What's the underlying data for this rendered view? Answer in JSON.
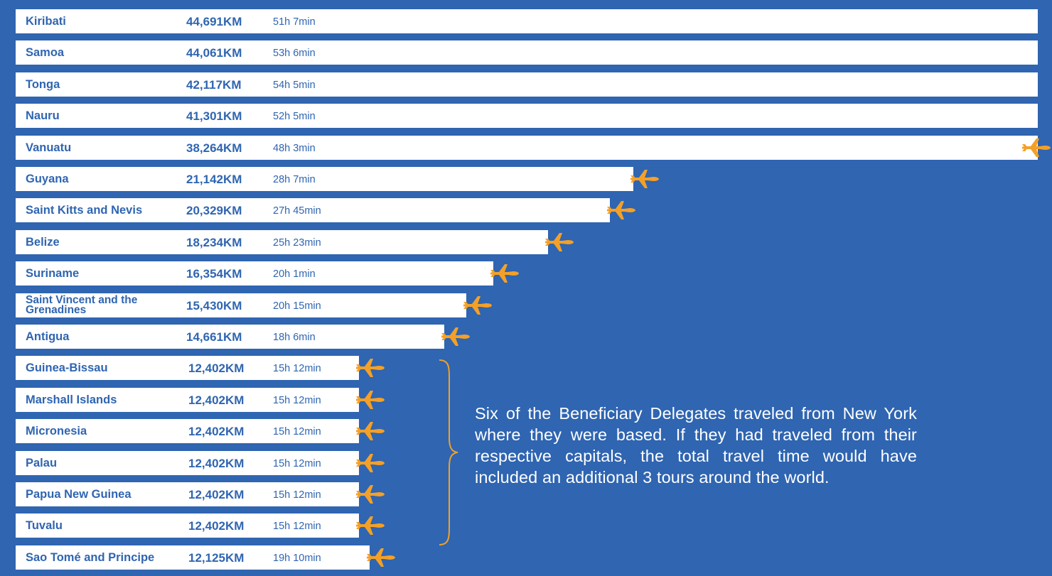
{
  "chart_data": {
    "type": "bar",
    "orientation": "horizontal",
    "colors": {
      "background": "#2f65b1",
      "bar": "#ffffff",
      "text": "#2f65b1",
      "plane": "#f4a027"
    },
    "rows": [
      {
        "country": "Kiribati",
        "distance": "44,691KM",
        "km": 44691,
        "time": "51h 7min",
        "group": false
      },
      {
        "country": "Samoa",
        "distance": "44,061KM",
        "km": 44061,
        "time": "53h 6min",
        "group": false
      },
      {
        "country": "Tonga",
        "distance": "42,117KM",
        "km": 42117,
        "time": "54h 5min",
        "group": false
      },
      {
        "country": "Nauru",
        "distance": "41,301KM",
        "km": 41301,
        "time": "52h 5min",
        "group": false
      },
      {
        "country": "Vanuatu",
        "distance": "38,264KM",
        "km": 38264,
        "time": "48h 3min",
        "group": false
      },
      {
        "country": "Guyana",
        "distance": "21,142KM",
        "km": 21142,
        "time": "28h 7min",
        "group": false
      },
      {
        "country": "Saint Kitts and Nevis",
        "distance": "20,329KM",
        "km": 20329,
        "time": "27h 45min",
        "group": false
      },
      {
        "country": "Belize",
        "distance": "18,234KM",
        "km": 18234,
        "time": "25h 23min",
        "group": false
      },
      {
        "country": "Suriname",
        "distance": "16,354KM",
        "km": 16354,
        "time": "20h 1min",
        "group": false
      },
      {
        "country": "Saint Vincent and the Grenadines",
        "distance": "15,430KM",
        "km": 15430,
        "time": "20h 15min",
        "group": false
      },
      {
        "country": "Antigua",
        "distance": "14,661KM",
        "km": 14661,
        "time": "18h 6min",
        "group": false
      },
      {
        "country": "Guinea-Bissau",
        "distance": "12,402KM",
        "km": 12402,
        "time": "15h 12min",
        "group": true
      },
      {
        "country": "Marshall Islands",
        "distance": "12,402KM",
        "km": 12402,
        "time": "15h 12min",
        "group": true
      },
      {
        "country": "Micronesia",
        "distance": "12,402KM",
        "km": 12402,
        "time": "15h 12min",
        "group": true
      },
      {
        "country": "Palau",
        "distance": "12,402KM",
        "km": 12402,
        "time": "15h 12min",
        "group": true
      },
      {
        "country": "Papua New Guinea",
        "distance": "12,402KM",
        "km": 12402,
        "time": "15h 12min",
        "group": true
      },
      {
        "country": "Tuvalu",
        "distance": "12,402KM",
        "km": 12402,
        "time": "15h 12min",
        "group": true
      },
      {
        "country": "Sao Tomé and Principe",
        "distance": "12,125KM",
        "km": 12125,
        "time": "19h 10min",
        "group": false
      }
    ]
  },
  "note": "Six of the Beneficiary Delegates traveled from New York where they were based. If they had traveled from their respective capitals, the total travel time would have included an additional 3 tours around the world."
}
